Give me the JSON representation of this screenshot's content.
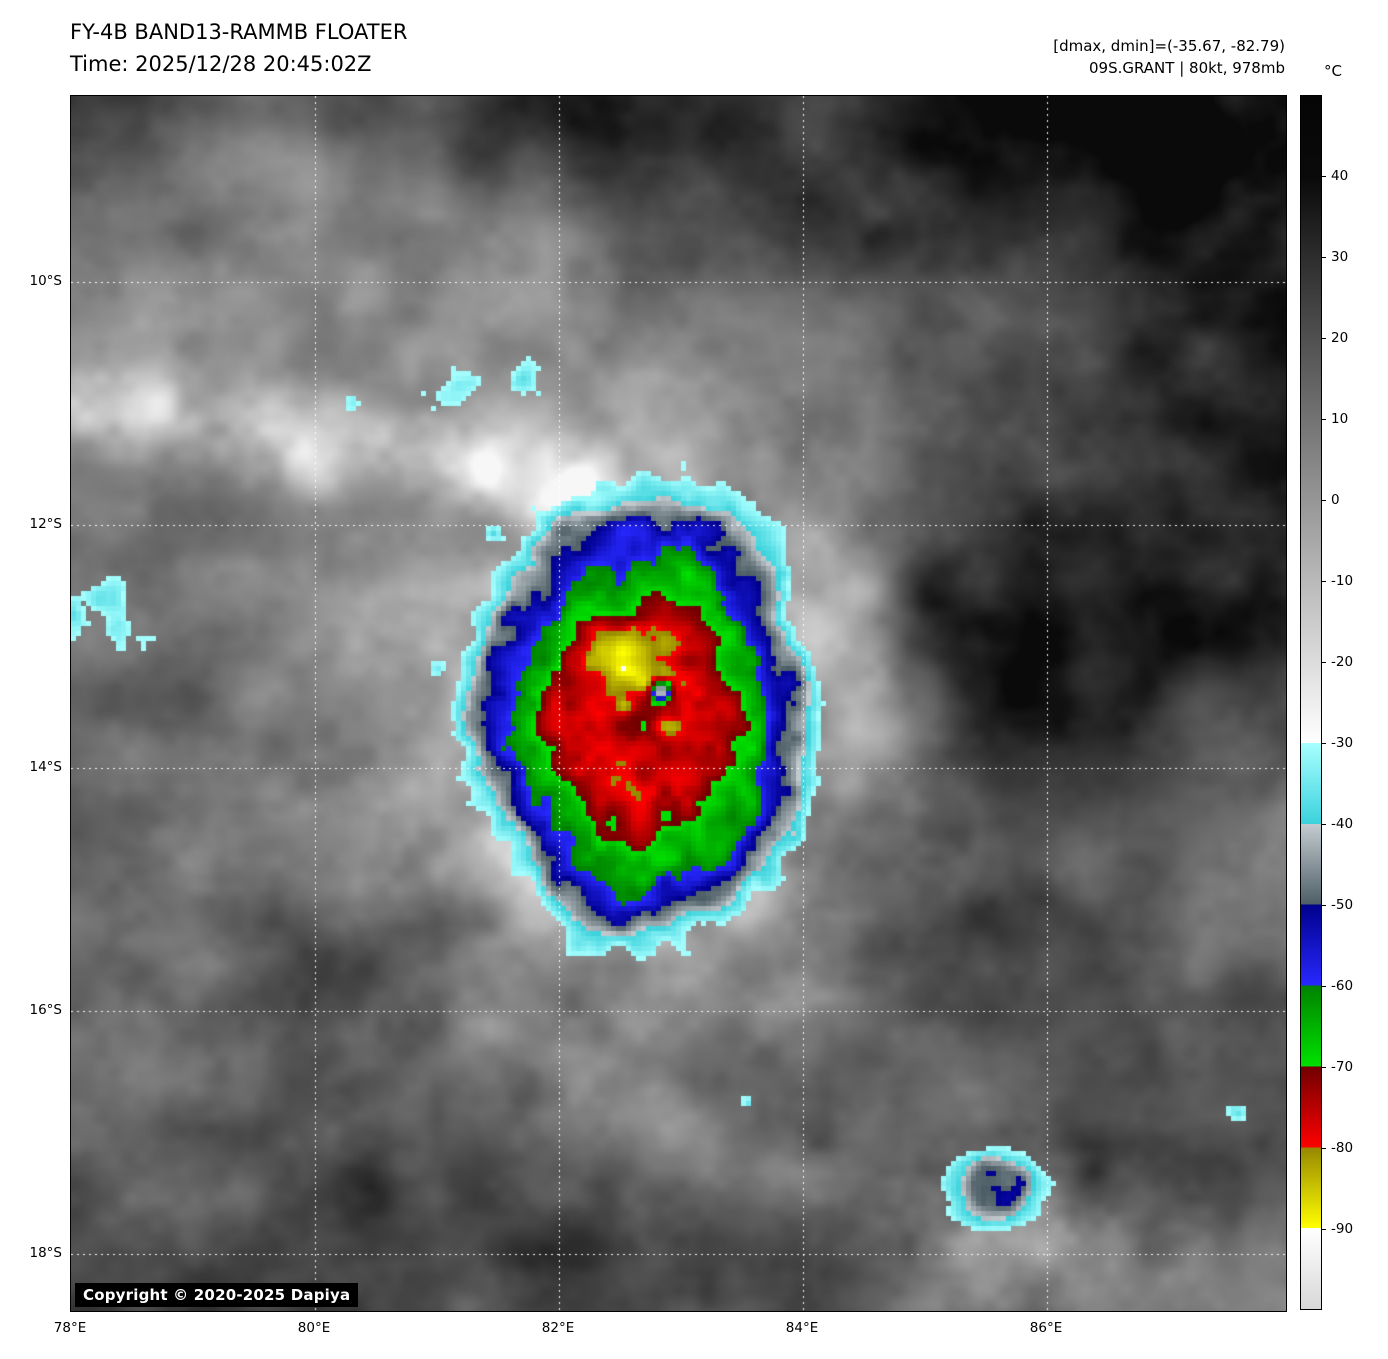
{
  "header": {
    "title": "FY-4B BAND13-RAMMB FLOATER",
    "time": "Time: 2025/12/28 20:45:02Z"
  },
  "annotations": {
    "range": "[dmax, dmin]=(-35.67, -82.79)",
    "storm": "09S.GRANT | 80kt, 978mb"
  },
  "colorbar": {
    "unit": "°C",
    "top_value": 50,
    "bottom_value": -100,
    "ticks": [
      40,
      30,
      20,
      10,
      0,
      -10,
      -20,
      -30,
      -40,
      -50,
      -60,
      -70,
      -80,
      -90
    ],
    "bands": [
      {
        "from": 50,
        "to": 40,
        "c1": "#050505",
        "c2": "#0a0a0a"
      },
      {
        "from": 40,
        "to": -30,
        "c1": "#0a0a0a",
        "c2": "#ffffff"
      },
      {
        "from": -30,
        "to": -40,
        "c1": "#a8ffff",
        "c2": "#3cd2dc"
      },
      {
        "from": -40,
        "to": -50,
        "c1": "#c4ccd0",
        "c2": "#4e5e66"
      },
      {
        "from": -50,
        "to": -60,
        "c1": "#00008c",
        "c2": "#2828ff"
      },
      {
        "from": -60,
        "to": -70,
        "c1": "#008200",
        "c2": "#00e100"
      },
      {
        "from": -70,
        "to": -80,
        "c1": "#700000",
        "c2": "#ff0000"
      },
      {
        "from": -80,
        "to": -90,
        "c1": "#968800",
        "c2": "#ffff00"
      },
      {
        "from": -90,
        "to": -100,
        "c1": "#ffffff",
        "c2": "#d8d8d8"
      }
    ]
  },
  "axes": {
    "x_ticks": [
      {
        "label": "78°E",
        "lon": 78
      },
      {
        "label": "80°E",
        "lon": 80
      },
      {
        "label": "82°E",
        "lon": 82
      },
      {
        "label": "84°E",
        "lon": 84
      },
      {
        "label": "86°E",
        "lon": 86
      }
    ],
    "y_ticks": [
      {
        "label": "10°S",
        "lat": 10
      },
      {
        "label": "12°S",
        "lat": 12
      },
      {
        "label": "14°S",
        "lat": 14
      },
      {
        "label": "16°S",
        "lat": 16
      },
      {
        "label": "18°S",
        "lat": 18
      }
    ]
  },
  "grid": {
    "lon_lines": [
      80,
      82,
      84,
      86
    ],
    "lat_lines": [
      10,
      12,
      14,
      16,
      18
    ]
  },
  "copyright": "Copyright © 2020-2025 Dapiya"
}
